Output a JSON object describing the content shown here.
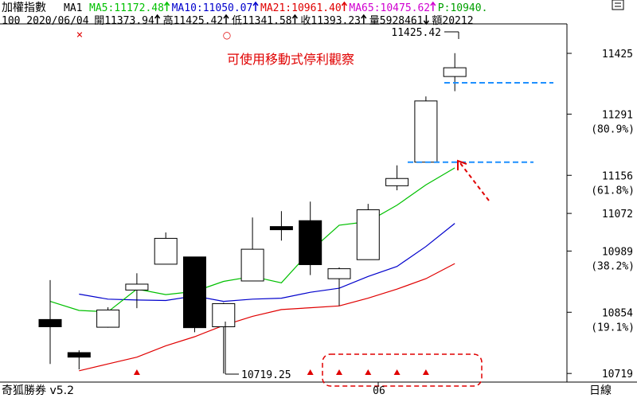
{
  "header": {
    "title": "加權指數",
    "ma_tag": "MA1",
    "indicators": [
      {
        "label": "MA5:11172.48",
        "color": "#00c000",
        "arrow": "up"
      },
      {
        "label": "MA10:11050.07",
        "color": "#0000cc",
        "arrow": "up"
      },
      {
        "label": "MA21:10961.40",
        "color": "#e00000",
        "arrow": "up"
      },
      {
        "label": "MA65:10475.62",
        "color": "#d000d0",
        "arrow": "up"
      },
      {
        "label": "P:10940.",
        "color": "#00a000",
        "arrow": "none"
      }
    ],
    "line2": [
      {
        "text": "100 2020/06/04",
        "arrow": "none"
      },
      {
        "text": "開11373.94",
        "arrow": "up"
      },
      {
        "text": "高11425.42",
        "arrow": "up"
      },
      {
        "text": "低11341.58",
        "arrow": "up"
      },
      {
        "text": "收11393.23",
        "arrow": "up"
      },
      {
        "text": "量5928461",
        "arrow": "down"
      },
      {
        "text": "額20212",
        "arrow": "none"
      }
    ]
  },
  "footer": {
    "app_name": "奇狐勝券 v5.2",
    "period": "日線",
    "x_label": "06"
  },
  "annotation": {
    "text": "可使用移動式停利觀察",
    "high_label": "11425.42",
    "low_label": "10719.25"
  },
  "markers": {
    "cross": "×",
    "circle": "○"
  },
  "colors": {
    "up_candle": "#ffffff",
    "down_candle": "#000000",
    "ma5": "#00c000",
    "ma10": "#0000cc",
    "ma21": "#e00000",
    "dashed_line": "#1e90ff",
    "annotation": "#e00000"
  },
  "chart_data": {
    "type": "candlestick",
    "ylim": [
      10700,
      11490
    ],
    "y_ticks": [
      {
        "value": 11425,
        "label": "11425",
        "pct": ""
      },
      {
        "value": 11291,
        "label": "11291",
        "pct": "(80.9%)"
      },
      {
        "value": 11156,
        "label": "11156",
        "pct": "(61.8%)"
      },
      {
        "value": 11072,
        "label": "11072",
        "pct": ""
      },
      {
        "value": 10989,
        "label": "10989",
        "pct": "(38.2%)"
      },
      {
        "value": 10854,
        "label": "10854",
        "pct": "(19.1%)"
      },
      {
        "value": 10719,
        "label": "10719",
        "pct": ""
      }
    ],
    "candles": [
      {
        "o": 10838,
        "h": 10925,
        "l": 10740,
        "c": 10822
      },
      {
        "o": 10765,
        "h": 10770,
        "l": 10728,
        "c": 10755
      },
      {
        "o": 10821,
        "h": 10865,
        "l": 10820,
        "c": 10859
      },
      {
        "o": 10903,
        "h": 10940,
        "l": 10863,
        "c": 10916
      },
      {
        "o": 10960,
        "h": 11030,
        "l": 10960,
        "c": 11017
      },
      {
        "o": 10976,
        "h": 10976,
        "l": 10810,
        "c": 10820
      },
      {
        "o": 10822,
        "h": 10875,
        "l": 10719,
        "c": 10873
      },
      {
        "o": 10923,
        "h": 11063,
        "l": 10923,
        "c": 10993
      },
      {
        "o": 11043,
        "h": 11077,
        "l": 11012,
        "c": 11036
      },
      {
        "o": 11056,
        "h": 11098,
        "l": 10936,
        "c": 10959
      },
      {
        "o": 10928,
        "h": 10953,
        "l": 10868,
        "c": 10950
      },
      {
        "o": 10970,
        "h": 11093,
        "l": 10970,
        "c": 11080
      },
      {
        "o": 11133,
        "h": 11178,
        "l": 11123,
        "c": 11149
      },
      {
        "o": 11185,
        "h": 11330,
        "l": 11185,
        "c": 11320
      },
      {
        "o": 11373.94,
        "h": 11425.42,
        "l": 11341.58,
        "c": 11393.23
      }
    ],
    "ma5": [
      10878,
      10858,
      10855,
      10905,
      10893,
      10900,
      10922,
      10933,
      10919,
      10989,
      11046,
      11054,
      11090,
      11135,
      11172.48
    ],
    "ma10": [
      10894,
      10883,
      10881,
      10880,
      10890,
      10878,
      10883,
      10885,
      10898,
      10907,
      10933,
      10955,
      10999,
      11050.07
    ],
    "ma21": [
      10725,
      10740,
      10755,
      10780,
      10800,
      10825,
      10845,
      10860,
      10864,
      10868,
      10885,
      10905,
      10928,
      10961.4
    ],
    "dashed_lines": [
      11360,
      11185
    ],
    "buy_markers_at": [
      3,
      9,
      10,
      11,
      12,
      13
    ]
  }
}
